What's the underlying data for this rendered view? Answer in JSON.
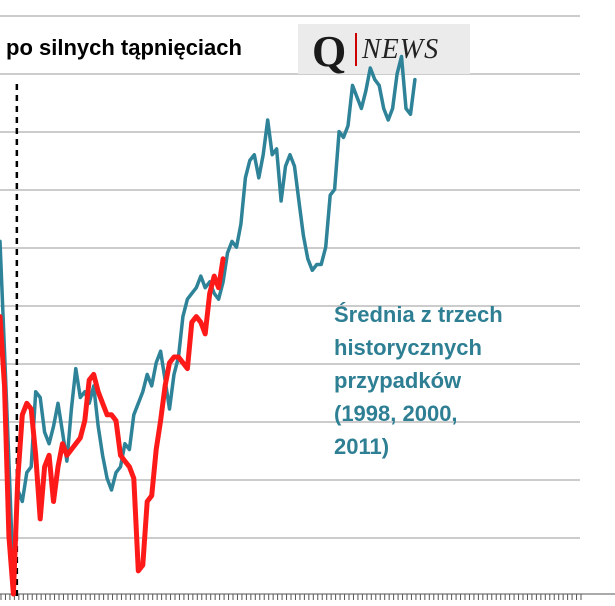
{
  "title": "po silnych tąpnięciach",
  "logo": {
    "q": "Q",
    "news": "NEWS"
  },
  "annotation": [
    "Średnia z trzech",
    "historycznych",
    "przypadków",
    "(1998, 2000,",
    "2011)"
  ],
  "colors": {
    "red": "#ff1a1a",
    "teal": "#2e8399",
    "grid": "#9a9a9a",
    "annotation": "#2e7f93",
    "logo_band": "#ebebeb"
  },
  "chart_data": {
    "type": "line",
    "title": "po silnych tąpnięciach",
    "x_ticks": 130,
    "xlim": [
      0,
      130
    ],
    "ylim": [
      0,
      1
    ],
    "grid": "horizontal",
    "event_line_x": 4,
    "series": [
      {
        "color": "#ff1a1a",
        "values": [
          [
            0,
            0.48
          ],
          [
            1,
            0.36
          ],
          [
            2,
            0.1
          ],
          [
            3,
            0.0
          ],
          [
            4,
            0.2
          ],
          [
            5,
            0.31
          ],
          [
            6,
            0.33
          ],
          [
            7,
            0.32
          ],
          [
            8,
            0.24
          ],
          [
            9,
            0.13
          ],
          [
            10,
            0.22
          ],
          [
            11,
            0.24
          ],
          [
            12,
            0.16
          ],
          [
            13,
            0.22
          ],
          [
            14,
            0.26
          ],
          [
            15,
            0.24
          ],
          [
            16,
            0.25
          ],
          [
            17,
            0.26
          ],
          [
            18,
            0.27
          ],
          [
            19,
            0.3
          ],
          [
            20,
            0.37
          ],
          [
            21,
            0.38
          ],
          [
            22,
            0.35
          ],
          [
            23,
            0.33
          ],
          [
            24,
            0.31
          ],
          [
            25,
            0.31
          ],
          [
            26,
            0.3
          ],
          [
            27,
            0.24
          ],
          [
            28,
            0.23
          ],
          [
            29,
            0.22
          ],
          [
            30,
            0.2
          ],
          [
            31,
            0.04
          ],
          [
            32,
            0.05
          ],
          [
            33,
            0.16
          ],
          [
            34,
            0.17
          ],
          [
            35,
            0.25
          ],
          [
            36,
            0.3
          ],
          [
            37,
            0.36
          ],
          [
            38,
            0.4
          ],
          [
            39,
            0.41
          ],
          [
            40,
            0.41
          ],
          [
            41,
            0.4
          ],
          [
            42,
            0.39
          ],
          [
            43,
            0.47
          ],
          [
            44,
            0.48
          ],
          [
            45,
            0.47
          ],
          [
            46,
            0.45
          ],
          [
            47,
            0.52
          ],
          [
            48,
            0.55
          ],
          [
            49,
            0.53
          ],
          [
            50,
            0.58
          ]
        ]
      },
      {
        "color": "#2e8399",
        "values": [
          [
            0,
            0.61
          ],
          [
            1,
            0.42
          ],
          [
            2,
            0.23
          ],
          [
            3,
            0.02
          ],
          [
            4,
            0.18
          ],
          [
            5,
            0.16
          ],
          [
            6,
            0.21
          ],
          [
            7,
            0.22
          ],
          [
            8,
            0.35
          ],
          [
            9,
            0.34
          ],
          [
            10,
            0.28
          ],
          [
            11,
            0.26
          ],
          [
            12,
            0.29
          ],
          [
            13,
            0.33
          ],
          [
            14,
            0.28
          ],
          [
            15,
            0.23
          ],
          [
            16,
            0.32
          ],
          [
            17,
            0.39
          ],
          [
            18,
            0.34
          ],
          [
            19,
            0.35
          ],
          [
            20,
            0.33
          ],
          [
            21,
            0.36
          ],
          [
            22,
            0.29
          ],
          [
            23,
            0.24
          ],
          [
            24,
            0.2
          ],
          [
            25,
            0.18
          ],
          [
            26,
            0.21
          ],
          [
            27,
            0.22
          ],
          [
            28,
            0.26
          ],
          [
            29,
            0.25
          ],
          [
            30,
            0.31
          ],
          [
            31,
            0.33
          ],
          [
            32,
            0.35
          ],
          [
            33,
            0.38
          ],
          [
            34,
            0.36
          ],
          [
            35,
            0.4
          ],
          [
            36,
            0.42
          ],
          [
            37,
            0.37
          ],
          [
            38,
            0.32
          ],
          [
            39,
            0.38
          ],
          [
            40,
            0.41
          ],
          [
            41,
            0.48
          ],
          [
            42,
            0.51
          ],
          [
            43,
            0.52
          ],
          [
            44,
            0.53
          ],
          [
            45,
            0.55
          ],
          [
            46,
            0.53
          ],
          [
            47,
            0.54
          ],
          [
            48,
            0.52
          ],
          [
            49,
            0.51
          ],
          [
            50,
            0.54
          ],
          [
            51,
            0.59
          ],
          [
            52,
            0.61
          ],
          [
            53,
            0.6
          ],
          [
            54,
            0.64
          ],
          [
            55,
            0.72
          ],
          [
            56,
            0.75
          ],
          [
            57,
            0.76
          ],
          [
            58,
            0.72
          ],
          [
            59,
            0.76
          ],
          [
            60,
            0.82
          ],
          [
            61,
            0.76
          ],
          [
            62,
            0.77
          ],
          [
            63,
            0.68
          ],
          [
            64,
            0.74
          ],
          [
            65,
            0.76
          ],
          [
            66,
            0.74
          ],
          [
            67,
            0.68
          ],
          [
            68,
            0.62
          ],
          [
            69,
            0.58
          ],
          [
            70,
            0.56
          ],
          [
            71,
            0.57
          ],
          [
            72,
            0.57
          ],
          [
            73,
            0.6
          ],
          [
            74,
            0.69
          ],
          [
            75,
            0.7
          ],
          [
            76,
            0.8
          ],
          [
            77,
            0.79
          ],
          [
            78,
            0.81
          ],
          [
            79,
            0.88
          ],
          [
            80,
            0.86
          ],
          [
            81,
            0.84
          ],
          [
            82,
            0.87
          ],
          [
            83,
            0.91
          ],
          [
            84,
            0.89
          ],
          [
            85,
            0.88
          ],
          [
            86,
            0.84
          ],
          [
            87,
            0.82
          ],
          [
            88,
            0.84
          ],
          [
            89,
            0.9
          ],
          [
            90,
            0.93
          ],
          [
            91,
            0.84
          ],
          [
            92,
            0.83
          ],
          [
            93,
            0.89
          ]
        ]
      }
    ]
  }
}
